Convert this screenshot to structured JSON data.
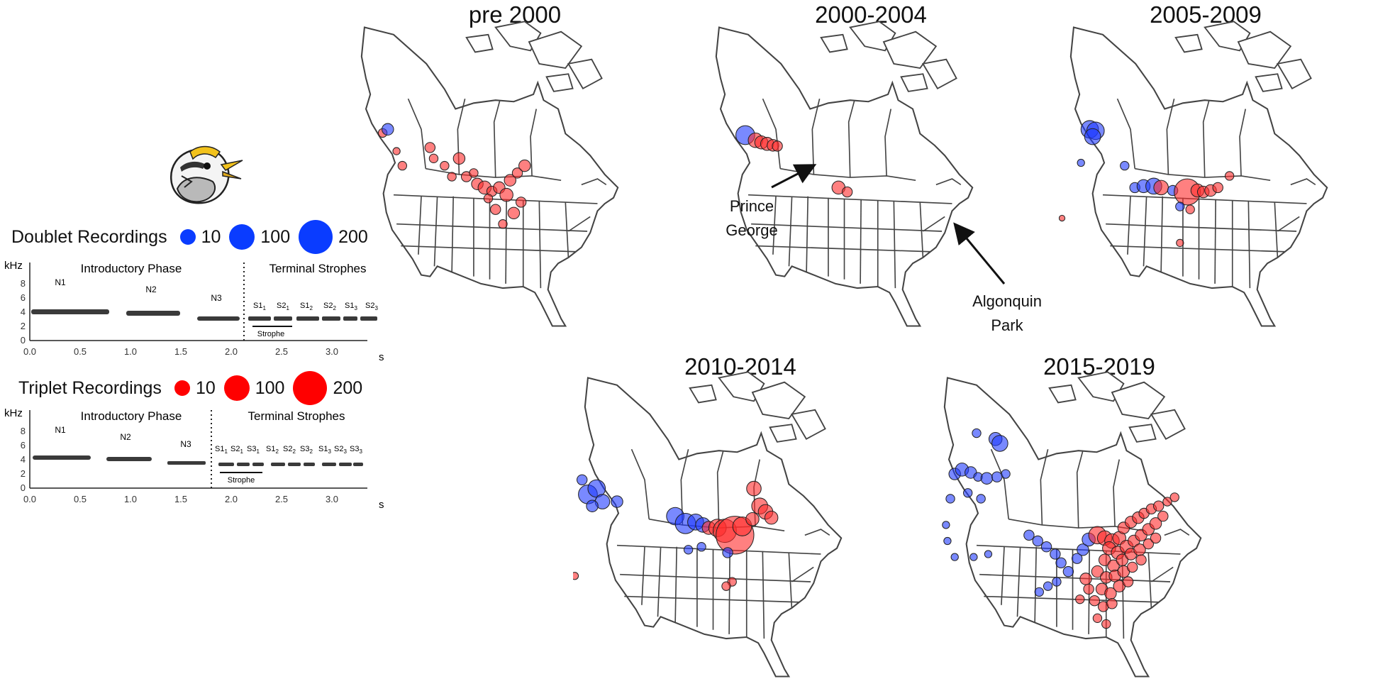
{
  "legend": {
    "doublet_title": "Doublet Recordings",
    "triplet_title": "Triplet Recordings",
    "sizes": [
      "10",
      "100",
      "200"
    ],
    "doublet_color": "#0a3cff",
    "triplet_color": "#ff0000"
  },
  "doublet_spectrogram": {
    "ylabel": "kHz",
    "yticks": [
      "0",
      "2",
      "4",
      "6",
      "8"
    ],
    "xticks": [
      "0.0",
      "0.5",
      "1.0",
      "1.5",
      "2.0",
      "2.5",
      "3.0"
    ],
    "xunit": "s",
    "phase_intro": "Introductory Phase",
    "phase_terminal": "Terminal Strophes",
    "notes": [
      "N1",
      "N2",
      "N3"
    ],
    "strophe_label": "Strophe",
    "syllables": [
      {
        "base": "S1",
        "sub": "1"
      },
      {
        "base": "S2",
        "sub": "1"
      },
      {
        "base": "S1",
        "sub": "2"
      },
      {
        "base": "S2",
        "sub": "2"
      },
      {
        "base": "S1",
        "sub": "3"
      },
      {
        "base": "S2",
        "sub": "3"
      }
    ]
  },
  "triplet_spectrogram": {
    "ylabel": "kHz",
    "yticks": [
      "0",
      "2",
      "4",
      "6",
      "8"
    ],
    "xticks": [
      "0.0",
      "0.5",
      "1.0",
      "1.5",
      "2.0",
      "2.5",
      "3.0"
    ],
    "xunit": "s",
    "phase_intro": "Introductory Phase",
    "phase_terminal": "Terminal Strophes",
    "notes": [
      "N1",
      "N2",
      "N3"
    ],
    "strophe_label": "Strophe",
    "syllables": [
      {
        "base": "S1",
        "sub": "1"
      },
      {
        "base": "S2",
        "sub": "1"
      },
      {
        "base": "S3",
        "sub": "1"
      },
      {
        "base": "S1",
        "sub": "2"
      },
      {
        "base": "S2",
        "sub": "2"
      },
      {
        "base": "S3",
        "sub": "2"
      },
      {
        "base": "S1",
        "sub": "3"
      },
      {
        "base": "S2",
        "sub": "3"
      },
      {
        "base": "S3",
        "sub": "3"
      }
    ]
  },
  "maps": [
    {
      "title": "pre 2000"
    },
    {
      "title": "2000-2004",
      "labels": [
        "Prince George",
        "Algonquin Park"
      ]
    },
    {
      "title": "2005-2009"
    },
    {
      "title": "2010-2014"
    },
    {
      "title": "2015-2019"
    }
  ]
}
